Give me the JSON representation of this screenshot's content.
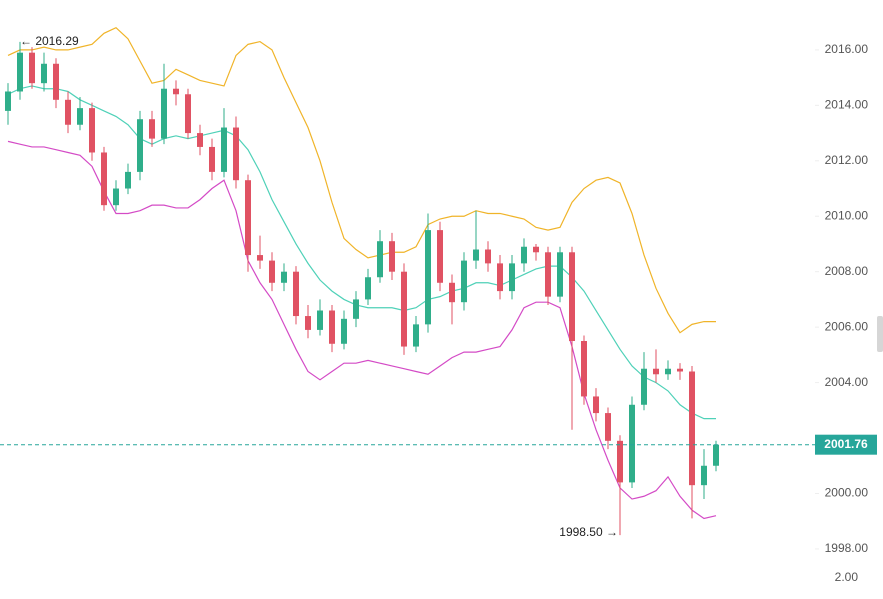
{
  "chart_data": {
    "type": "candlestick",
    "annotations": {
      "high_label": "← 2016.29",
      "low_label": "1998.50 →"
    },
    "last_price": 2001.76,
    "lower_pane_label": "2.00",
    "ylim": [
      1997.24,
      2017.8
    ],
    "yticks": [
      {
        "value": 1998,
        "label": "1998.00"
      },
      {
        "value": 2000,
        "label": "2000.00"
      },
      {
        "value": 2004,
        "label": "2004.00"
      },
      {
        "value": 2006,
        "label": "2006.00"
      },
      {
        "value": 2008,
        "label": "2008.00"
      },
      {
        "value": 2010,
        "label": "2010.00"
      },
      {
        "value": 2012,
        "label": "2012.00"
      },
      {
        "value": 2014,
        "label": "2014.00"
      },
      {
        "value": 2016,
        "label": "2016.00"
      }
    ],
    "up_color": "#2fae8a",
    "down_color": "#e05263",
    "last_price_color": "#26a69a",
    "open": [
      2013.8,
      2014.5,
      2015.9,
      2014.8,
      2015.5,
      2014.2,
      2013.3,
      2013.9,
      2012.3,
      2010.4,
      2011.0,
      2011.6,
      2013.5,
      2012.8,
      2014.6,
      2014.4,
      2013.0,
      2012.5,
      2011.6,
      2013.2,
      2011.3,
      2008.6,
      2008.4,
      2007.6,
      2008.0,
      2006.4,
      2005.9,
      2006.6,
      2005.4,
      2006.3,
      2007.0,
      2007.8,
      2009.1,
      2008.0,
      2005.3,
      2006.1,
      2009.5,
      2007.6,
      2006.9,
      2008.4,
      2008.8,
      2008.3,
      2007.3,
      2008.3,
      2008.9,
      2008.7,
      2007.1,
      2008.7,
      2005.5,
      2003.5,
      2002.9,
      2001.9,
      2000.4,
      2003.2,
      2004.5,
      2004.3,
      2004.5,
      2004.4,
      2000.3,
      2001.0
    ],
    "high": [
      2014.8,
      2016.29,
      2016.1,
      2015.9,
      2015.7,
      2014.5,
      2014.3,
      2014.1,
      2012.5,
      2011.3,
      2011.9,
      2013.8,
      2013.8,
      2015.5,
      2014.9,
      2014.6,
      2013.3,
      2012.8,
      2013.9,
      2013.6,
      2011.5,
      2009.3,
      2008.7,
      2008.3,
      2008.2,
      2006.8,
      2007.0,
      2006.8,
      2006.6,
      2007.3,
      2008.1,
      2009.5,
      2009.4,
      2008.3,
      2006.4,
      2010.1,
      2009.8,
      2007.9,
      2008.7,
      2010.2,
      2009.1,
      2008.6,
      2008.6,
      2009.2,
      2009.0,
      2008.9,
      2008.9,
      2008.9,
      2005.7,
      2003.8,
      2003.1,
      2002.1,
      2003.5,
      2005.1,
      2005.2,
      2004.8,
      2004.7,
      2004.6,
      2001.6,
      2001.9
    ],
    "low": [
      2013.3,
      2014.2,
      2014.6,
      2014.5,
      2013.9,
      2013.0,
      2013.1,
      2012.0,
      2010.2,
      2010.2,
      2010.8,
      2011.3,
      2012.5,
      2012.6,
      2014.0,
      2012.8,
      2012.2,
      2011.3,
      2011.4,
      2011.0,
      2008.0,
      2008.1,
      2007.3,
      2007.3,
      2006.1,
      2005.6,
      2005.7,
      2005.1,
      2005.2,
      2006.0,
      2006.8,
      2007.6,
      2007.7,
      2005.0,
      2005.1,
      2005.8,
      2007.3,
      2006.1,
      2006.6,
      2008.1,
      2008.0,
      2007.0,
      2007.0,
      2008.0,
      2008.4,
      2006.8,
      2006.9,
      2002.3,
      2003.2,
      2002.6,
      2001.6,
      1998.5,
      2000.2,
      2003.0,
      2004.0,
      2004.1,
      2004.1,
      1999.1,
      1999.8,
      2000.8
    ],
    "close": [
      2014.5,
      2015.9,
      2014.8,
      2015.5,
      2014.2,
      2013.3,
      2013.9,
      2012.3,
      2010.4,
      2011.0,
      2011.6,
      2013.5,
      2012.8,
      2014.6,
      2014.4,
      2013.0,
      2012.5,
      2011.6,
      2013.2,
      2011.3,
      2008.6,
      2008.4,
      2007.6,
      2008.0,
      2006.4,
      2005.9,
      2006.6,
      2005.4,
      2006.3,
      2007.0,
      2007.8,
      2009.1,
      2008.0,
      2005.3,
      2006.1,
      2009.5,
      2007.6,
      2006.9,
      2008.4,
      2008.8,
      2008.3,
      2007.3,
      2008.3,
      2008.9,
      2008.7,
      2007.1,
      2008.7,
      2005.5,
      2003.5,
      2002.9,
      2001.9,
      2000.4,
      2003.2,
      2004.5,
      2004.3,
      2004.5,
      2004.4,
      2000.3,
      2001.0,
      2001.76
    ],
    "bands": [
      {
        "color": "#f0b429",
        "values": [
          2015.8,
          2016.0,
          2016.0,
          2016.1,
          2016.0,
          2016.0,
          2016.1,
          2016.2,
          2016.6,
          2016.8,
          2016.4,
          2015.6,
          2014.8,
          2014.9,
          2015.3,
          2015.1,
          2014.9,
          2014.8,
          2014.7,
          2015.8,
          2016.2,
          2016.3,
          2016.0,
          2015.0,
          2014.1,
          2013.2,
          2012.0,
          2010.5,
          2009.2,
          2008.8,
          2008.5,
          2008.6,
          2008.7,
          2008.7,
          2008.9,
          2009.7,
          2009.9,
          2010.0,
          2010.0,
          2010.2,
          2010.1,
          2010.1,
          2010.0,
          2009.9,
          2009.6,
          2009.5,
          2009.6,
          2010.5,
          2011.0,
          2011.3,
          2011.4,
          2011.2,
          2010.1,
          2008.6,
          2007.4,
          2006.5,
          2005.8,
          2006.1,
          2006.2,
          2006.2
        ]
      },
      {
        "color": "#4fd1b8",
        "values": [
          2014.4,
          2014.6,
          2014.7,
          2014.6,
          2014.6,
          2014.5,
          2014.2,
          2014.0,
          2013.8,
          2013.6,
          2013.3,
          2012.8,
          2012.6,
          2012.8,
          2012.9,
          2012.8,
          2012.9,
          2013.0,
          2013.1,
          2012.9,
          2012.4,
          2011.6,
          2010.6,
          2009.8,
          2009.0,
          2008.3,
          2007.7,
          2007.3,
          2007.0,
          2006.8,
          2006.7,
          2006.7,
          2006.7,
          2006.6,
          2006.7,
          2007.0,
          2007.1,
          2007.3,
          2007.4,
          2007.6,
          2007.6,
          2007.5,
          2007.7,
          2007.9,
          2008.1,
          2008.2,
          2008.2,
          2007.8,
          2007.3,
          2006.6,
          2005.9,
          2005.2,
          2004.6,
          2004.2,
          2004.0,
          2003.7,
          2003.2,
          2002.9,
          2002.7,
          2002.7
        ]
      },
      {
        "color": "#d44bc6",
        "values": [
          2012.7,
          2012.6,
          2012.5,
          2012.5,
          2012.4,
          2012.3,
          2012.2,
          2011.8,
          2010.9,
          2010.1,
          2010.1,
          2010.2,
          2010.4,
          2010.4,
          2010.3,
          2010.3,
          2010.6,
          2011.0,
          2011.3,
          2010.2,
          2008.4,
          2007.6,
          2007.0,
          2006.1,
          2005.2,
          2004.4,
          2004.1,
          2004.4,
          2004.7,
          2004.7,
          2004.8,
          2004.7,
          2004.6,
          2004.5,
          2004.4,
          2004.3,
          2004.6,
          2004.9,
          2005.1,
          2005.1,
          2005.2,
          2005.3,
          2005.9,
          2006.7,
          2006.9,
          2006.9,
          2006.7,
          2005.3,
          2003.6,
          2002.3,
          2001.2,
          2000.2,
          1999.8,
          1999.9,
          2000.1,
          2000.6,
          1999.9,
          1999.4,
          1999.1,
          1999.2
        ]
      }
    ]
  }
}
